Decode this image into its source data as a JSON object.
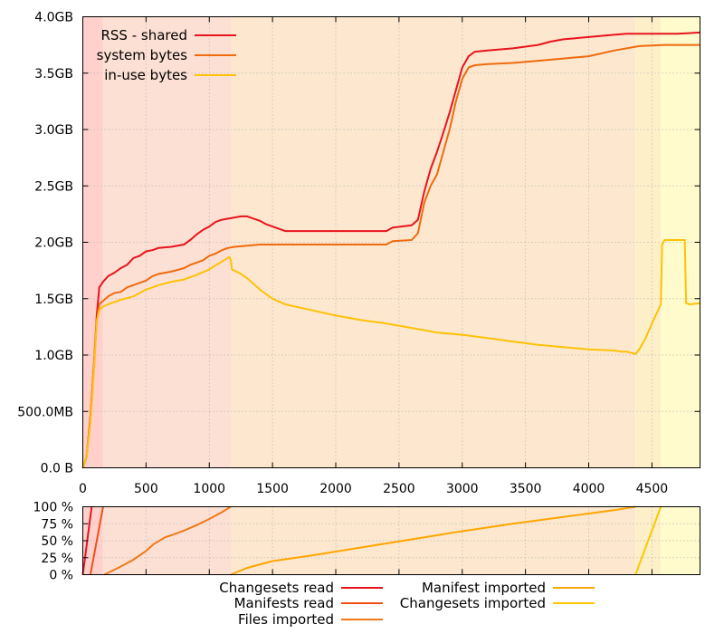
{
  "chart_data": [
    {
      "type": "line",
      "xlim": [
        0,
        4880
      ],
      "ylim": [
        0,
        4.0
      ],
      "y_unit": "GB",
      "x_ticks": [
        0,
        500,
        1000,
        1500,
        2000,
        2500,
        3000,
        3500,
        4000,
        4500
      ],
      "y_ticks": [
        {
          "value": 0.0,
          "label": "0.0 B"
        },
        {
          "value": 0.5,
          "label": "500.0MB"
        },
        {
          "value": 1.0,
          "label": "1.0GB"
        },
        {
          "value": 1.5,
          "label": "1.5GB"
        },
        {
          "value": 2.0,
          "label": "2.0GB"
        },
        {
          "value": 2.5,
          "label": "2.5GB"
        },
        {
          "value": 3.0,
          "label": "3.0GB"
        },
        {
          "value": 3.5,
          "label": "3.5GB"
        },
        {
          "value": 4.0,
          "label": "4.0GB"
        }
      ],
      "grid": true,
      "legend_position": "top-left",
      "phases": [
        {
          "start": 0,
          "end": 160,
          "color": "#ffd0cc"
        },
        {
          "start": 160,
          "end": 1170,
          "color": "#fde0d4"
        },
        {
          "start": 1170,
          "end": 4370,
          "color": "#fde8cf"
        },
        {
          "start": 4370,
          "end": 4570,
          "color": "#fdf0c9"
        },
        {
          "start": 4570,
          "end": 4880,
          "color": "#fffbcc"
        }
      ],
      "series": [
        {
          "name": "RSS - shared",
          "color": "#e8141c",
          "x": [
            0,
            30,
            60,
            90,
            110,
            130,
            160,
            200,
            250,
            300,
            350,
            400,
            450,
            500,
            550,
            600,
            700,
            800,
            850,
            900,
            950,
            1000,
            1050,
            1100,
            1150,
            1200,
            1250,
            1300,
            1350,
            1400,
            1450,
            1500,
            1550,
            1600,
            2000,
            2400,
            2450,
            2600,
            2650,
            2700,
            2750,
            2800,
            2850,
            2900,
            2950,
            3000,
            3050,
            3100,
            3200,
            3400,
            3600,
            3700,
            3800,
            4000,
            4200,
            4300,
            4500,
            4700,
            4880
          ],
          "values": [
            0,
            0.1,
            0.45,
            0.95,
            1.35,
            1.6,
            1.65,
            1.7,
            1.73,
            1.77,
            1.8,
            1.86,
            1.88,
            1.92,
            1.93,
            1.95,
            1.96,
            1.98,
            2.02,
            2.07,
            2.11,
            2.14,
            2.18,
            2.2,
            2.21,
            2.22,
            2.23,
            2.23,
            2.21,
            2.19,
            2.16,
            2.14,
            2.12,
            2.1,
            2.1,
            2.1,
            2.13,
            2.15,
            2.2,
            2.45,
            2.65,
            2.8,
            2.97,
            3.15,
            3.35,
            3.55,
            3.65,
            3.69,
            3.7,
            3.72,
            3.75,
            3.78,
            3.8,
            3.82,
            3.84,
            3.85,
            3.85,
            3.85,
            3.86
          ]
        },
        {
          "name": "system bytes",
          "color": "#f06a0e",
          "x": [
            0,
            30,
            60,
            90,
            110,
            130,
            160,
            200,
            250,
            300,
            350,
            400,
            450,
            500,
            550,
            600,
            700,
            800,
            850,
            900,
            950,
            1000,
            1050,
            1100,
            1150,
            1200,
            1300,
            1400,
            1600,
            2000,
            2400,
            2450,
            2600,
            2650,
            2700,
            2750,
            2800,
            2850,
            2900,
            2950,
            3000,
            3050,
            3100,
            3200,
            3400,
            3600,
            3800,
            4000,
            4200,
            4400,
            4600,
            4880
          ],
          "values": [
            0,
            0.1,
            0.45,
            0.95,
            1.3,
            1.45,
            1.48,
            1.52,
            1.55,
            1.56,
            1.6,
            1.62,
            1.64,
            1.66,
            1.7,
            1.72,
            1.74,
            1.77,
            1.8,
            1.82,
            1.84,
            1.88,
            1.9,
            1.93,
            1.95,
            1.96,
            1.97,
            1.98,
            1.98,
            1.98,
            1.98,
            2.01,
            2.02,
            2.08,
            2.35,
            2.5,
            2.6,
            2.8,
            3.0,
            3.25,
            3.45,
            3.55,
            3.57,
            3.58,
            3.59,
            3.61,
            3.63,
            3.65,
            3.7,
            3.74,
            3.75,
            3.75
          ]
        },
        {
          "name": "in-use bytes",
          "color": "#ffc107",
          "x": [
            0,
            30,
            60,
            90,
            110,
            130,
            160,
            200,
            300,
            400,
            500,
            600,
            700,
            800,
            900,
            1000,
            1100,
            1160,
            1170,
            1180,
            1250,
            1300,
            1400,
            1500,
            1600,
            1800,
            2000,
            2200,
            2400,
            2600,
            2800,
            3000,
            3200,
            3400,
            3600,
            3800,
            4000,
            4200,
            4260,
            4300,
            4370,
            4400,
            4450,
            4500,
            4570,
            4580,
            4600,
            4700,
            4760,
            4770,
            4800,
            4880
          ],
          "values": [
            0,
            0.1,
            0.4,
            0.9,
            1.3,
            1.4,
            1.43,
            1.45,
            1.49,
            1.52,
            1.58,
            1.62,
            1.65,
            1.67,
            1.71,
            1.76,
            1.83,
            1.87,
            1.84,
            1.76,
            1.72,
            1.68,
            1.58,
            1.5,
            1.45,
            1.4,
            1.35,
            1.31,
            1.28,
            1.24,
            1.2,
            1.18,
            1.15,
            1.12,
            1.09,
            1.07,
            1.05,
            1.04,
            1.03,
            1.03,
            1.01,
            1.05,
            1.15,
            1.28,
            1.45,
            1.98,
            2.02,
            2.02,
            2.02,
            1.46,
            1.45,
            1.46
          ]
        }
      ]
    },
    {
      "type": "line",
      "xlim": [
        0,
        4880
      ],
      "ylim": [
        0,
        100
      ],
      "y_ticks": [
        {
          "value": 0,
          "label": "0 %"
        },
        {
          "value": 25,
          "label": "25 %"
        },
        {
          "value": 50,
          "label": "50 %"
        },
        {
          "value": 75,
          "label": "75 %"
        },
        {
          "value": 100,
          "label": "100 %"
        }
      ],
      "grid": true,
      "legend_position": "bottom",
      "series": [
        {
          "name": "Changesets read",
          "color": "#e8141c",
          "x": [
            0,
            70
          ],
          "values": [
            0,
            100
          ]
        },
        {
          "name": "Manifests read",
          "color": "#f05014",
          "x": [
            60,
            160
          ],
          "values": [
            0,
            100
          ]
        },
        {
          "name": "Files imported",
          "color": "#f07818",
          "x": [
            170,
            300,
            400,
            500,
            560,
            650,
            700,
            800,
            900,
            1000,
            1100,
            1170
          ],
          "values": [
            0,
            12,
            22,
            35,
            45,
            55,
            58,
            65,
            73,
            82,
            92,
            100
          ]
        },
        {
          "name": "Manifest imported",
          "color": "#ffa500",
          "x": [
            1170,
            1300,
            1500,
            1800,
            2200,
            2600,
            3000,
            3400,
            3800,
            4200,
            4370
          ],
          "values": [
            0,
            10,
            20,
            28,
            40,
            52,
            64,
            75,
            85,
            95,
            100
          ]
        },
        {
          "name": "Changesets imported",
          "color": "#ffc700",
          "x": [
            4370,
            4570
          ],
          "values": [
            0,
            100
          ]
        }
      ]
    }
  ]
}
